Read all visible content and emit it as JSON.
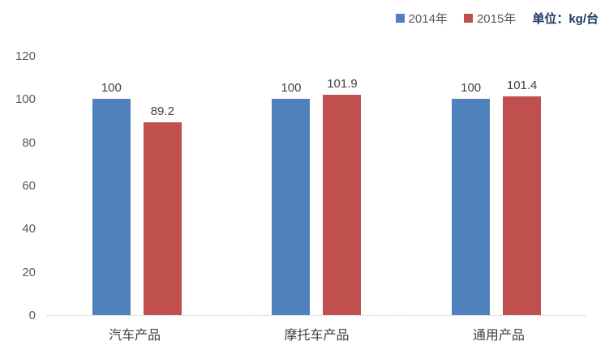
{
  "chart_data": {
    "type": "bar",
    "title": "",
    "categories": [
      "汽车产品",
      "摩托车产品",
      "通用产品"
    ],
    "series": [
      {
        "name": "2014年",
        "color": "#4F81BD",
        "values": [
          100,
          100,
          100
        ],
        "labels": [
          "100",
          "100",
          "100"
        ]
      },
      {
        "name": "2015年",
        "color": "#C0504D",
        "values": [
          89.2,
          101.9,
          101.4
        ],
        "labels": [
          "89.2",
          "101.9",
          "101.4"
        ]
      }
    ],
    "unit_label": "单位：kg/台",
    "xlabel": "",
    "ylabel": "",
    "y_axis": {
      "min": 0,
      "max": 120,
      "step": 20,
      "ticks": [
        "0",
        "20",
        "40",
        "60",
        "80",
        "100",
        "120"
      ]
    },
    "legend_position": "top-right",
    "grid": false
  },
  "colors": {
    "series_2014": "#4F81BD",
    "series_2015": "#C0504D",
    "axis_text": "#595959",
    "value_label_text": "#404040",
    "unit_label_text": "#1F3864",
    "baseline": "#C8C8C8",
    "background": "#FFFFFF"
  }
}
